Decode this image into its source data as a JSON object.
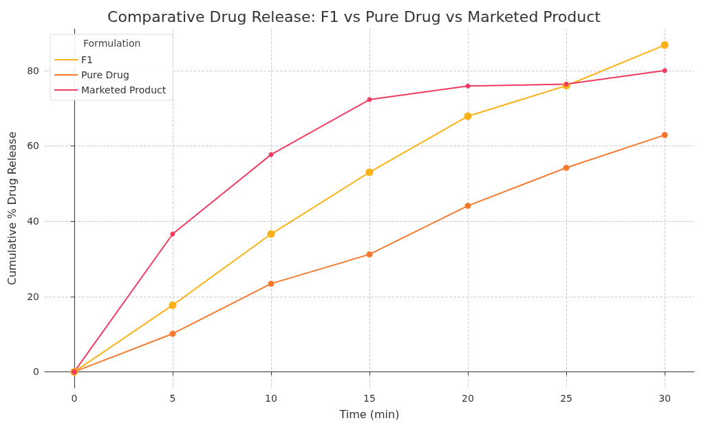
{
  "chart_data": {
    "type": "line",
    "title": "Comparative Drug Release: F1 vs Pure Drug vs Marketed Product",
    "xlabel": "Time (min)",
    "ylabel": "Cumulative % Drug Release",
    "legend_title": "Formulation",
    "x": [
      0,
      5,
      10,
      15,
      20,
      25,
      30
    ],
    "series": [
      {
        "name": "F1",
        "color": "#fbb117",
        "values": [
          0,
          17.7,
          36.6,
          53.0,
          67.9,
          76.0,
          86.8
        ]
      },
      {
        "name": "Pure Drug",
        "color": "#f57a2f",
        "values": [
          0,
          10.1,
          23.4,
          31.2,
          44.1,
          54.2,
          62.9
        ]
      },
      {
        "name": "Marketed Product",
        "color": "#f03a5f",
        "values": [
          0,
          36.6,
          57.7,
          72.3,
          75.9,
          76.4,
          80.0
        ]
      }
    ],
    "xlim": [
      -1.5,
      31.5
    ],
    "xticks": [
      0,
      5,
      10,
      15,
      20,
      25,
      30
    ],
    "ylim": [
      -4.3,
      91.1
    ],
    "yticks": [
      0,
      20,
      40,
      60,
      80
    ],
    "grid": true,
    "legend": "top left",
    "marker": "circle",
    "line_style": "solid"
  }
}
